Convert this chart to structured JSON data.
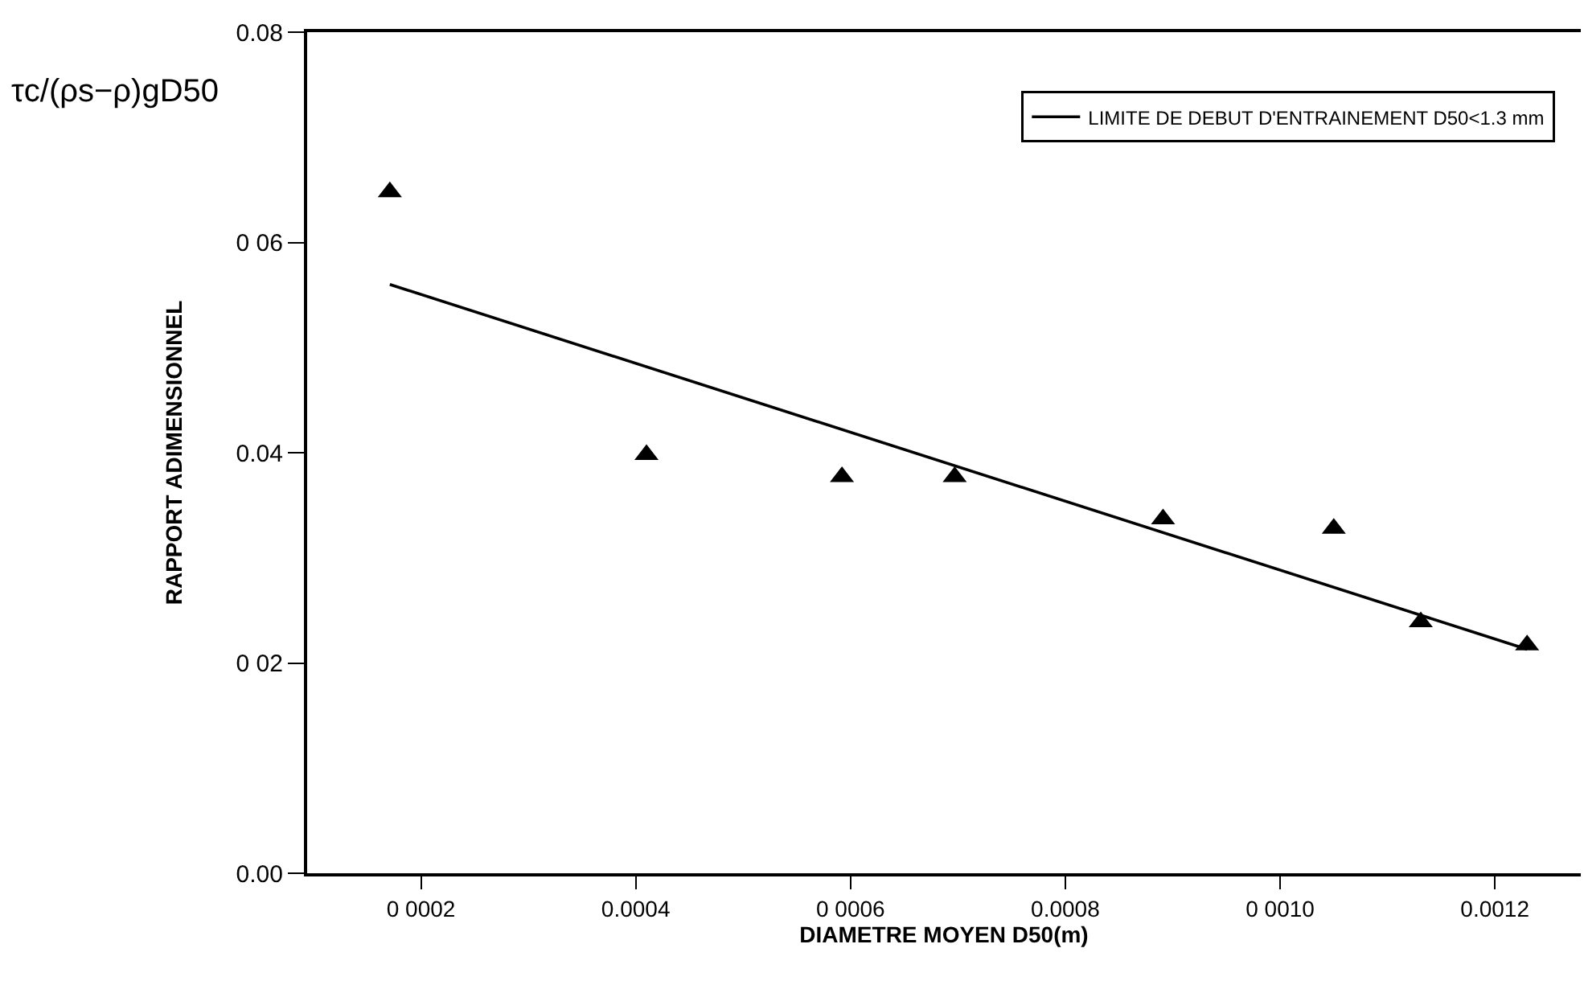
{
  "chart_data": {
    "type": "scatter",
    "xlabel": "DIAMETRE MOYEN D50(m)",
    "ylabel": "RAPPORT ADIMENSIONNEL",
    "annotations": [
      "τc/(ρs−ρ)gD50"
    ],
    "series": [
      {
        "marker": "triangle",
        "color": "#000000",
        "x": [
          0.000171,
          0.00041,
          0.000592,
          0.000697,
          0.000891,
          0.00105,
          0.001131,
          0.00123
        ],
        "values": [
          0.0648,
          0.0398,
          0.0377,
          0.0377,
          0.0337,
          0.0328,
          0.0239,
          0.0217
        ]
      },
      {
        "type": "line",
        "name": "LIMITE DE DEBUT D'ENTRAINEMENT D50<1.3 mm",
        "color": "#000000",
        "line_style": "solid",
        "x": [
          0.000171,
          0.00123
        ],
        "values": [
          0.056,
          0.0213
        ]
      }
    ],
    "xlim": [
      9.4e-05,
      0.00128
    ],
    "ylim": [
      0,
      0.08
    ],
    "xticks": [
      {
        "value": 0.0002,
        "label": "0 0002"
      },
      0.0004,
      {
        "value": 0.0006,
        "label": "0 0006"
      },
      0.0008,
      {
        "value": 0.001,
        "label": "0 0010"
      },
      0.0012
    ],
    "yticks": [
      {
        "value": 0,
        "label": "0.00"
      },
      {
        "value": 0.02,
        "label": "0 02"
      },
      0.04,
      {
        "value": 0.06,
        "label": "0 06"
      },
      0.08
    ],
    "grid": false,
    "legend": "top right"
  }
}
